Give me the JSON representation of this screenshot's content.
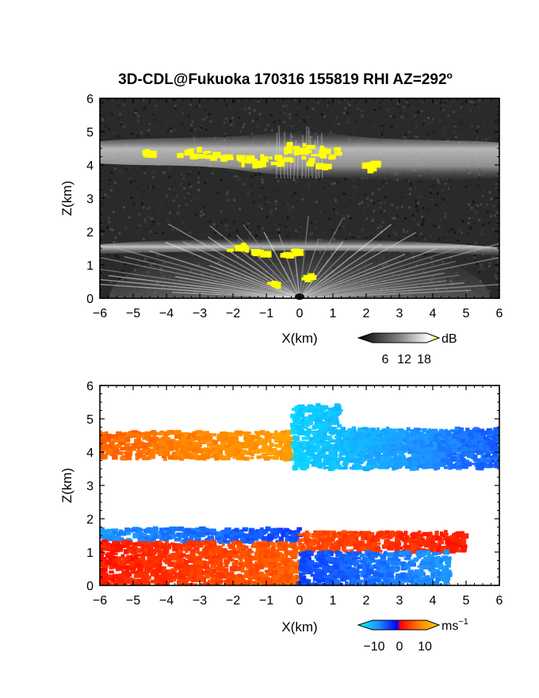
{
  "title": "3D-CDL@Fukuoka 170316 155819 RHI AZ=292",
  "title_degree": "o",
  "chart_data": [
    {
      "type": "heatmap",
      "quantity": "reflectivity",
      "xlabel": "X(km)",
      "ylabel": "Z(km)",
      "xlim": [
        -6,
        6
      ],
      "ylim": [
        0,
        6
      ],
      "x_ticks": [
        "−6",
        "−5",
        "−4",
        "−3",
        "−2",
        "−1",
        "0",
        "1",
        "2",
        "3",
        "4",
        "5",
        "6"
      ],
      "y_ticks": [
        "0",
        "1",
        "2",
        "3",
        "4",
        "5",
        "6"
      ],
      "colorbar": {
        "unit": "dB",
        "ticks": [
          "6",
          "12",
          "18"
        ],
        "range": [
          0,
          20
        ],
        "colors": [
          "#000000",
          "#808080",
          "#ffffff",
          "#ffff00"
        ]
      },
      "layers": [
        {
          "feature": "upper echo layer",
          "z_range_km": [
            3.7,
            4.7
          ],
          "x_range_km": [
            -6,
            6
          ]
        },
        {
          "feature": "strong echo patches",
          "z_range_km": [
            3.9,
            4.6
          ],
          "x_range_km": [
            -3.2,
            2.6
          ]
        },
        {
          "feature": "lower echo layer",
          "z_range_km": [
            1.3,
            1.6
          ],
          "x_range_km": [
            -6,
            6
          ]
        },
        {
          "feature": "radial beams from radar",
          "z_range_km": [
            0,
            1.6
          ],
          "x_range_km": [
            -4,
            4
          ]
        }
      ]
    },
    {
      "type": "heatmap",
      "quantity": "Doppler velocity",
      "xlabel": "X(km)",
      "ylabel": "Z(km)",
      "xlim": [
        -6,
        6
      ],
      "ylim": [
        0,
        6
      ],
      "x_ticks": [
        "−6",
        "−5",
        "−4",
        "−3",
        "−2",
        "−1",
        "0",
        "1",
        "2",
        "3",
        "4",
        "5",
        "6"
      ],
      "y_ticks": [
        "0",
        "1",
        "2",
        "3",
        "4",
        "5",
        "6"
      ],
      "colorbar": {
        "unit": "ms",
        "unit_exponent": "−1",
        "ticks": [
          "−10",
          "0",
          "10"
        ],
        "range": [
          -15,
          15
        ],
        "colors": [
          "#00ffff",
          "#1e90ff",
          "#0000ff",
          "#ff0000",
          "#ff8c00",
          "#ffd700"
        ]
      },
      "layers": [
        {
          "feature": "upper layer, receding side",
          "z_range_km": [
            3.8,
            4.6
          ],
          "x_range_km": [
            -6,
            -0.2
          ],
          "velocity_ms": [
            6,
            10
          ]
        },
        {
          "feature": "upper layer, approaching side",
          "z_range_km": [
            3.5,
            5.4
          ],
          "x_range_km": [
            -0.2,
            6
          ],
          "velocity_ms": [
            -12,
            -5
          ]
        },
        {
          "feature": "lower layer, top band",
          "z_range_km": [
            1.3,
            1.7
          ],
          "x_range_km": [
            -6,
            0
          ],
          "velocity_ms": [
            -8,
            -4
          ]
        },
        {
          "feature": "lower layer, bottom band",
          "z_range_km": [
            0,
            1.3
          ],
          "x_range_km": [
            -6,
            0
          ],
          "velocity_ms": [
            2,
            6
          ]
        },
        {
          "feature": "lower layer, right top band",
          "z_range_km": [
            1.0,
            1.6
          ],
          "x_range_km": [
            0,
            5
          ],
          "velocity_ms": [
            2,
            5
          ]
        },
        {
          "feature": "lower layer, right bottom band",
          "z_range_km": [
            0,
            1.0
          ],
          "x_range_km": [
            0,
            4.5
          ],
          "velocity_ms": [
            -8,
            -4
          ]
        }
      ]
    }
  ]
}
